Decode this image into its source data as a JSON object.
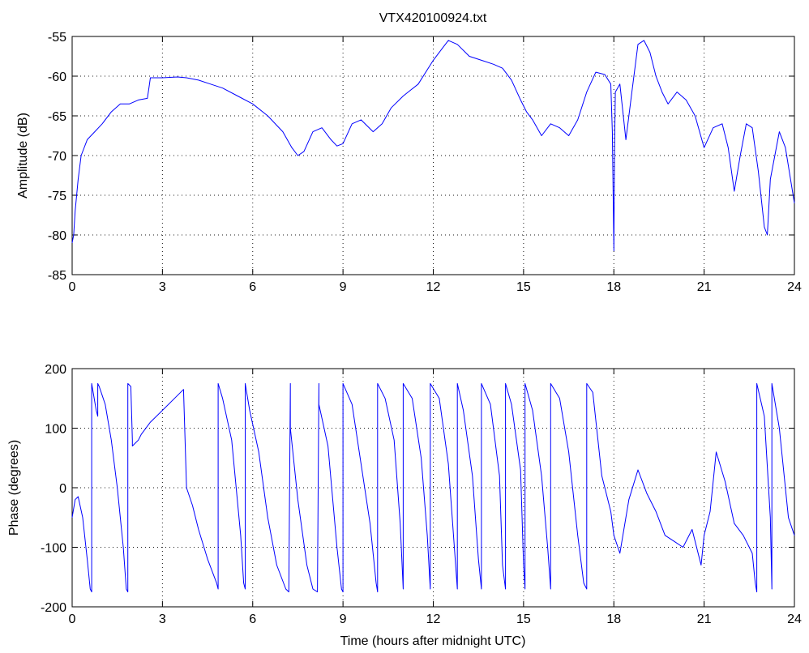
{
  "colors": {
    "trace": "#0000ff",
    "axes": "#000000",
    "background": "#ffffff"
  },
  "chart_data": [
    {
      "type": "line",
      "title": "VTX420100924.txt",
      "xlabel": "",
      "ylabel": "Amplitude (dB)",
      "xlim": [
        0,
        24
      ],
      "ylim": [
        -85,
        -55
      ],
      "xticks": [
        0,
        3,
        6,
        9,
        12,
        15,
        18,
        21,
        24
      ],
      "yticks": [
        -85,
        -80,
        -75,
        -70,
        -65,
        -60,
        -55
      ],
      "xtick_labels": [
        "0",
        "3",
        "6",
        "9",
        "12",
        "15",
        "18",
        "21",
        "24"
      ],
      "ytick_labels": [
        "-85",
        "-80",
        "-75",
        "-70",
        "-65",
        "-60",
        "-55"
      ],
      "grid": true,
      "series": [
        {
          "x": [
            0.0,
            0.05,
            0.1,
            0.2,
            0.3,
            0.5,
            0.7,
            1.0,
            1.3,
            1.6,
            1.9,
            2.2,
            2.5,
            2.55,
            2.6,
            3.0,
            3.5,
            3.8,
            4.2,
            4.6,
            5.0,
            5.5,
            6.0,
            6.5,
            7.0,
            7.3,
            7.5,
            7.7,
            8.0,
            8.3,
            8.6,
            8.8,
            9.0,
            9.3,
            9.6,
            10.0,
            10.3,
            10.6,
            11.0,
            11.5,
            12.0,
            12.3,
            12.5,
            12.8,
            13.2,
            13.6,
            14.0,
            14.3,
            14.6,
            14.9,
            15.1,
            15.3,
            15.6,
            15.9,
            16.2,
            16.5,
            16.8,
            17.1,
            17.4,
            17.7,
            17.9,
            17.95,
            18.0,
            18.02,
            18.05,
            18.2,
            18.4,
            18.6,
            18.8,
            19.0,
            19.2,
            19.4,
            19.6,
            19.8,
            20.1,
            20.4,
            20.7,
            21.0,
            21.3,
            21.6,
            21.8,
            22.0,
            22.2,
            22.4,
            22.6,
            22.8,
            23.0,
            23.1,
            23.2,
            23.5,
            23.7,
            24.0
          ],
          "y": [
            -81,
            -80,
            -77,
            -73,
            -70,
            -68,
            -67.2,
            -66,
            -64.5,
            -63.5,
            -63.5,
            -63,
            -62.8,
            -61.5,
            -60.2,
            -60.2,
            -60.1,
            -60.2,
            -60.5,
            -61,
            -61.5,
            -62.5,
            -63.5,
            -65,
            -67,
            -69,
            -70,
            -69.5,
            -67,
            -66.5,
            -68,
            -68.8,
            -68.5,
            -66,
            -65.5,
            -67,
            -66,
            -64,
            -62.5,
            -61,
            -58,
            -56.5,
            -55.5,
            -56,
            -57.5,
            -58,
            -58.5,
            -59,
            -60.5,
            -63,
            -64.5,
            -65.5,
            -67.5,
            -66,
            -66.5,
            -67.5,
            -65.5,
            -62,
            -59.5,
            -59.8,
            -61,
            -67,
            -82,
            -70,
            -62,
            -61,
            -68,
            -62,
            -56,
            -55.5,
            -57,
            -60,
            -62,
            -63.5,
            -62,
            -63,
            -65,
            -69,
            -66.5,
            -66,
            -69,
            -74.5,
            -70,
            -66,
            -66.5,
            -72,
            -79,
            -80,
            -73,
            -67,
            -69,
            -76
          ]
        }
      ]
    },
    {
      "type": "line",
      "title": "",
      "xlabel": "Time (hours after midnight UTC)",
      "ylabel": "Phase (degrees)",
      "xlim": [
        0,
        24
      ],
      "ylim": [
        -200,
        200
      ],
      "xticks": [
        0,
        3,
        6,
        9,
        12,
        15,
        18,
        21,
        24
      ],
      "yticks": [
        -200,
        -100,
        0,
        100,
        200
      ],
      "xtick_labels": [
        "0",
        "3",
        "6",
        "9",
        "12",
        "15",
        "18",
        "21",
        "24"
      ],
      "ytick_labels": [
        "-200",
        "-100",
        "0",
        "100",
        "200"
      ],
      "grid": true,
      "series": [
        {
          "x": [
            0.0,
            0.1,
            0.2,
            0.35,
            0.5,
            0.6,
            0.65,
            0.65,
            0.8,
            0.85,
            0.85,
            0.9,
            1.1,
            1.3,
            1.5,
            1.7,
            1.8,
            1.85,
            1.85,
            1.95,
            2.0,
            2.0,
            2.2,
            2.3,
            2.6,
            3.0,
            3.4,
            3.7,
            3.8,
            4.0,
            4.2,
            4.5,
            4.8,
            4.85,
            4.85,
            5.0,
            5.3,
            5.6,
            5.7,
            5.75,
            5.75,
            5.9,
            6.2,
            6.5,
            6.8,
            7.1,
            7.2,
            7.25,
            7.25,
            7.5,
            7.8,
            8.0,
            8.15,
            8.2,
            8.2,
            8.5,
            8.8,
            8.95,
            9.0,
            9.0,
            9.3,
            9.6,
            9.9,
            10.1,
            10.15,
            10.15,
            10.4,
            10.7,
            10.9,
            11.0,
            11.0,
            11.3,
            11.6,
            11.8,
            11.9,
            11.9,
            12.2,
            12.5,
            12.7,
            12.8,
            12.8,
            13.0,
            13.3,
            13.5,
            13.6,
            13.6,
            13.9,
            14.2,
            14.3,
            14.4,
            14.4,
            14.6,
            14.9,
            15.0,
            15.05,
            15.05,
            15.3,
            15.6,
            15.8,
            15.9,
            15.9,
            16.2,
            16.5,
            16.8,
            17.0,
            17.1,
            17.1,
            17.3,
            17.6,
            17.9,
            18.0,
            18.2,
            18.5,
            18.8,
            19.1,
            19.4,
            19.7,
            20.0,
            20.3,
            20.6,
            20.9,
            21.0,
            21.2,
            21.4,
            21.7,
            22.0,
            22.3,
            22.6,
            22.7,
            22.75,
            22.75,
            23.0,
            23.2,
            23.25,
            23.25,
            23.5,
            23.8,
            24.0
          ],
          "y": [
            -50,
            -20,
            -15,
            -50,
            -120,
            -170,
            -175,
            175,
            130,
            120,
            175,
            170,
            140,
            80,
            0,
            -100,
            -170,
            -175,
            175,
            170,
            80,
            70,
            80,
            90,
            110,
            130,
            150,
            165,
            0,
            -30,
            -70,
            -120,
            -160,
            -170,
            175,
            150,
            80,
            -80,
            -160,
            -170,
            175,
            130,
            60,
            -50,
            -130,
            -170,
            -175,
            175,
            100,
            -20,
            -130,
            -170,
            -175,
            175,
            140,
            70,
            -100,
            -170,
            -175,
            175,
            140,
            40,
            -60,
            -160,
            -175,
            175,
            150,
            80,
            -60,
            -170,
            175,
            150,
            50,
            -80,
            -170,
            175,
            150,
            40,
            -100,
            -170,
            175,
            130,
            20,
            -120,
            -170,
            175,
            140,
            20,
            -130,
            -170,
            175,
            140,
            30,
            -130,
            -170,
            175,
            130,
            20,
            -100,
            -170,
            175,
            150,
            60,
            -80,
            -160,
            -170,
            175,
            160,
            20,
            -40,
            -80,
            -110,
            -20,
            30,
            -10,
            -40,
            -80,
            -90,
            -100,
            -70,
            -130,
            -80,
            -40,
            60,
            10,
            -60,
            -80,
            -110,
            -160,
            -175,
            175,
            120,
            -50,
            -170,
            175,
            100,
            -50,
            -80
          ]
        }
      ]
    }
  ]
}
